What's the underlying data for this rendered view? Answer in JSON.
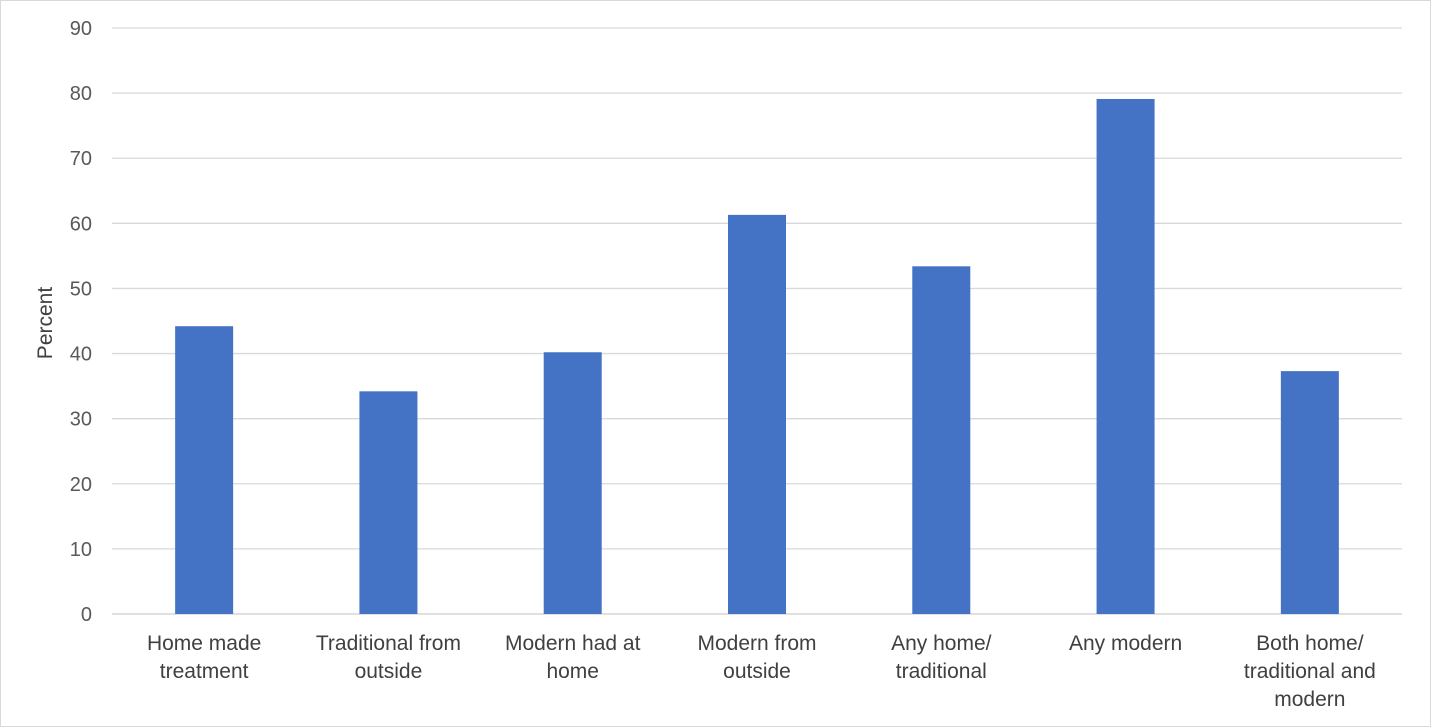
{
  "chart_data": {
    "type": "bar",
    "title": "",
    "xlabel": "",
    "ylabel": "Percent",
    "ylim": [
      0,
      90
    ],
    "yticks": [
      0,
      10,
      20,
      30,
      40,
      50,
      60,
      70,
      80,
      90
    ],
    "grid": true,
    "legend": "none",
    "bar_color": "#4472C4",
    "categories": [
      [
        "Home made",
        "treatment"
      ],
      [
        "Traditional from",
        "outside"
      ],
      [
        "Modern had at",
        "home"
      ],
      [
        "Modern from",
        "outside"
      ],
      [
        "Any home/",
        "traditional"
      ],
      [
        "Any modern"
      ],
      [
        "Both home/",
        "traditional and",
        "modern"
      ]
    ],
    "values": [
      44.2,
      34.2,
      40.2,
      61.3,
      53.4,
      79.1,
      37.3
    ]
  }
}
